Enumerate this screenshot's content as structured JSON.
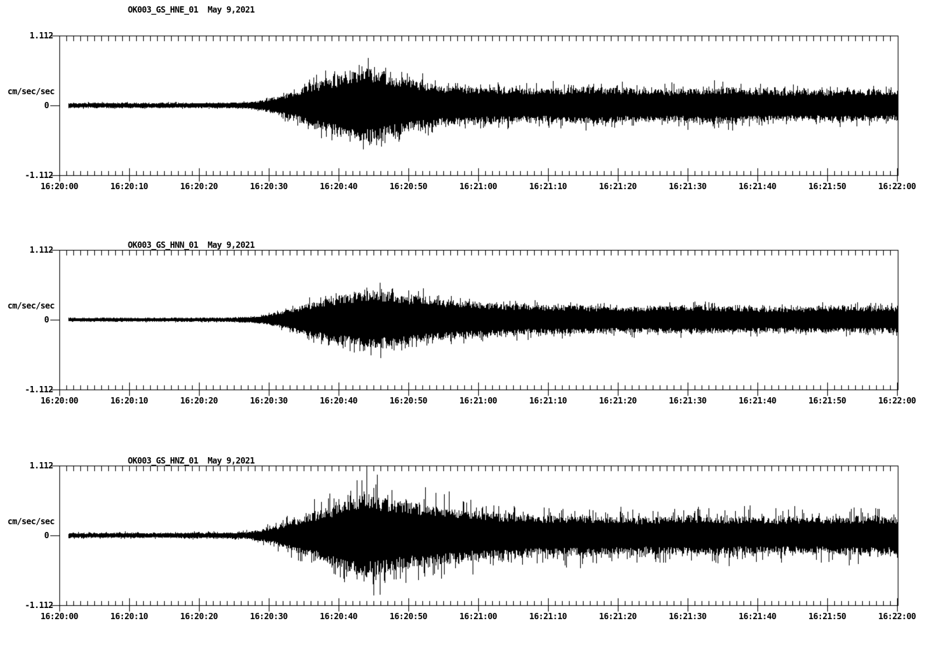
{
  "page": {
    "background_color": "#ffffff",
    "ink_color": "#000000",
    "description": "Three stacked strong-motion seismogram panels for station OK003 (network GS, location 01), channels HNE, HNN, HNZ, recorded May 9, 2021 from 16:20:00 to 16:22:00."
  },
  "chart_data": [
    {
      "type": "line",
      "title": "OK003_GS_HNE_01  May 9,2021",
      "channel_id": "OK003_GS_HNE_01",
      "date": "May 9,2021",
      "ylabel": "cm/sec/sec",
      "y_max_label": "1.112",
      "y_zero_label": "0",
      "y_min_label": "-1.112",
      "ylim": [
        -1.112,
        1.112
      ],
      "x_start": "16:20:00",
      "x_end": "16:22:00",
      "x_span_sec": 120,
      "x_major_tick_sec": 10,
      "x_minor_tick_sec": 1,
      "x_tick_labels": [
        "16:20:00",
        "16:20:10",
        "16:20:20",
        "16:20:30",
        "16:20:40",
        "16:20:50",
        "16:21:00",
        "16:21:10",
        "16:21:20",
        "16:21:30",
        "16:21:40",
        "16:21:50",
        "16:22:00"
      ],
      "event_onset_sec": 29,
      "peak_time_sec": 44,
      "peak_amp_approx": 0.88,
      "spike_factor": 1.75,
      "envelope_t_sec": [
        0,
        15,
        24,
        27,
        29,
        31,
        33,
        35,
        37,
        39,
        41,
        43,
        44,
        45,
        47,
        49,
        51,
        54,
        57,
        60,
        64,
        68,
        72,
        76,
        80,
        84,
        88,
        92,
        96,
        100,
        104,
        108,
        112,
        116,
        120
      ],
      "envelope_amp": [
        0.033,
        0.034,
        0.036,
        0.045,
        0.07,
        0.12,
        0.17,
        0.25,
        0.32,
        0.38,
        0.44,
        0.49,
        0.51,
        0.49,
        0.44,
        0.38,
        0.33,
        0.29,
        0.26,
        0.25,
        0.24,
        0.23,
        0.24,
        0.25,
        0.24,
        0.22,
        0.22,
        0.24,
        0.25,
        0.22,
        0.21,
        0.21,
        0.22,
        0.21,
        0.22
      ]
    },
    {
      "type": "line",
      "title": "OK003_GS_HNN_01  May 9,2021",
      "channel_id": "OK003_GS_HNN_01",
      "date": "May 9,2021",
      "ylabel": "cm/sec/sec",
      "y_max_label": "1.112",
      "y_zero_label": "0",
      "y_min_label": "-1.112",
      "ylim": [
        -1.112,
        1.112
      ],
      "x_start": "16:20:00",
      "x_end": "16:22:00",
      "x_span_sec": 120,
      "x_major_tick_sec": 10,
      "x_minor_tick_sec": 1,
      "x_tick_labels": [
        "16:20:00",
        "16:20:10",
        "16:20:20",
        "16:20:30",
        "16:20:40",
        "16:20:50",
        "16:21:00",
        "16:21:10",
        "16:21:20",
        "16:21:30",
        "16:21:40",
        "16:21:50",
        "16:22:00"
      ],
      "event_onset_sec": 29,
      "peak_time_sec": 45,
      "peak_amp_approx": 0.66,
      "spike_factor": 1.65,
      "envelope_t_sec": [
        0,
        15,
        24,
        27,
        29,
        31,
        33,
        35,
        37,
        39,
        41,
        43,
        45,
        46,
        48,
        50,
        52,
        55,
        58,
        61,
        65,
        70,
        75,
        80,
        85,
        90,
        95,
        100,
        105,
        110,
        115,
        120
      ],
      "envelope_amp": [
        0.025,
        0.026,
        0.03,
        0.04,
        0.06,
        0.1,
        0.15,
        0.2,
        0.26,
        0.31,
        0.35,
        0.38,
        0.4,
        0.4,
        0.37,
        0.34,
        0.31,
        0.28,
        0.25,
        0.23,
        0.21,
        0.2,
        0.19,
        0.18,
        0.18,
        0.19,
        0.18,
        0.17,
        0.17,
        0.18,
        0.18,
        0.18
      ]
    },
    {
      "type": "line",
      "title": "OK003_GS_HNZ_01  May 9,2021",
      "channel_id": "OK003_GS_HNZ_01",
      "date": "May 9,2021",
      "ylabel": "cm/sec/sec",
      "y_max_label": "1.112",
      "y_zero_label": "0",
      "y_min_label": "-1.112",
      "ylim": [
        -1.112,
        1.112
      ],
      "x_start": "16:20:00",
      "x_end": "16:22:00",
      "x_span_sec": 120,
      "x_major_tick_sec": 10,
      "x_minor_tick_sec": 1,
      "x_tick_labels": [
        "16:20:00",
        "16:20:10",
        "16:20:20",
        "16:20:30",
        "16:20:40",
        "16:20:50",
        "16:21:00",
        "16:21:10",
        "16:21:20",
        "16:21:30",
        "16:21:40",
        "16:21:50",
        "16:22:00"
      ],
      "event_onset_sec": 29,
      "peak_time_sec": 44,
      "peak_amp_approx": 1.07,
      "spike_factor": 2.0,
      "envelope_t_sec": [
        0,
        15,
        24,
        27,
        29,
        31,
        33,
        35,
        37,
        39,
        41,
        43,
        44,
        45,
        47,
        49,
        51,
        53,
        56,
        59,
        62,
        66,
        70,
        74,
        78,
        82,
        86,
        90,
        94,
        98,
        102,
        106,
        110,
        114,
        118,
        120
      ],
      "envelope_amp": [
        0.033,
        0.034,
        0.038,
        0.05,
        0.08,
        0.13,
        0.19,
        0.26,
        0.33,
        0.4,
        0.47,
        0.54,
        0.58,
        0.55,
        0.51,
        0.47,
        0.44,
        0.42,
        0.38,
        0.34,
        0.31,
        0.29,
        0.27,
        0.27,
        0.26,
        0.25,
        0.25,
        0.26,
        0.25,
        0.25,
        0.24,
        0.24,
        0.25,
        0.26,
        0.25,
        0.26
      ]
    }
  ]
}
